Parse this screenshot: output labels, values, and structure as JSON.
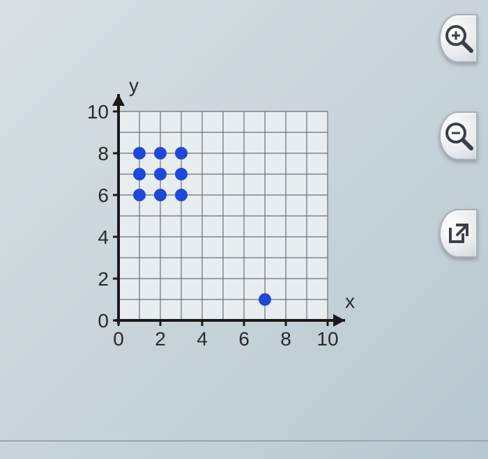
{
  "chart": {
    "type": "scatter",
    "xlabel": "x",
    "ylabel": "y",
    "xlim": [
      0,
      10
    ],
    "ylim": [
      0,
      10
    ],
    "xtick_step": 2,
    "ytick_step": 2,
    "xticks": [
      0,
      2,
      4,
      6,
      8,
      10
    ],
    "yticks": [
      0,
      2,
      4,
      6,
      8,
      10
    ],
    "axis_label_fontsize": 28,
    "tick_fontsize": 28,
    "grid_color": "#6a7278",
    "minor_grid": true,
    "background_color": "#e8edf0",
    "axis_color": "#1a1a1a",
    "axis_width": 4,
    "point_color": "#2048d8",
    "point_radius": 9,
    "points": [
      {
        "x": 1,
        "y": 6
      },
      {
        "x": 2,
        "y": 6
      },
      {
        "x": 3,
        "y": 6
      },
      {
        "x": 1,
        "y": 7
      },
      {
        "x": 2,
        "y": 7
      },
      {
        "x": 3,
        "y": 7
      },
      {
        "x": 1,
        "y": 8
      },
      {
        "x": 2,
        "y": 8
      },
      {
        "x": 3,
        "y": 8
      },
      {
        "x": 7,
        "y": 1
      }
    ]
  },
  "toolbar": {
    "zoom_in_label": "zoom-in",
    "zoom_out_label": "zoom-out",
    "popout_label": "popout"
  }
}
